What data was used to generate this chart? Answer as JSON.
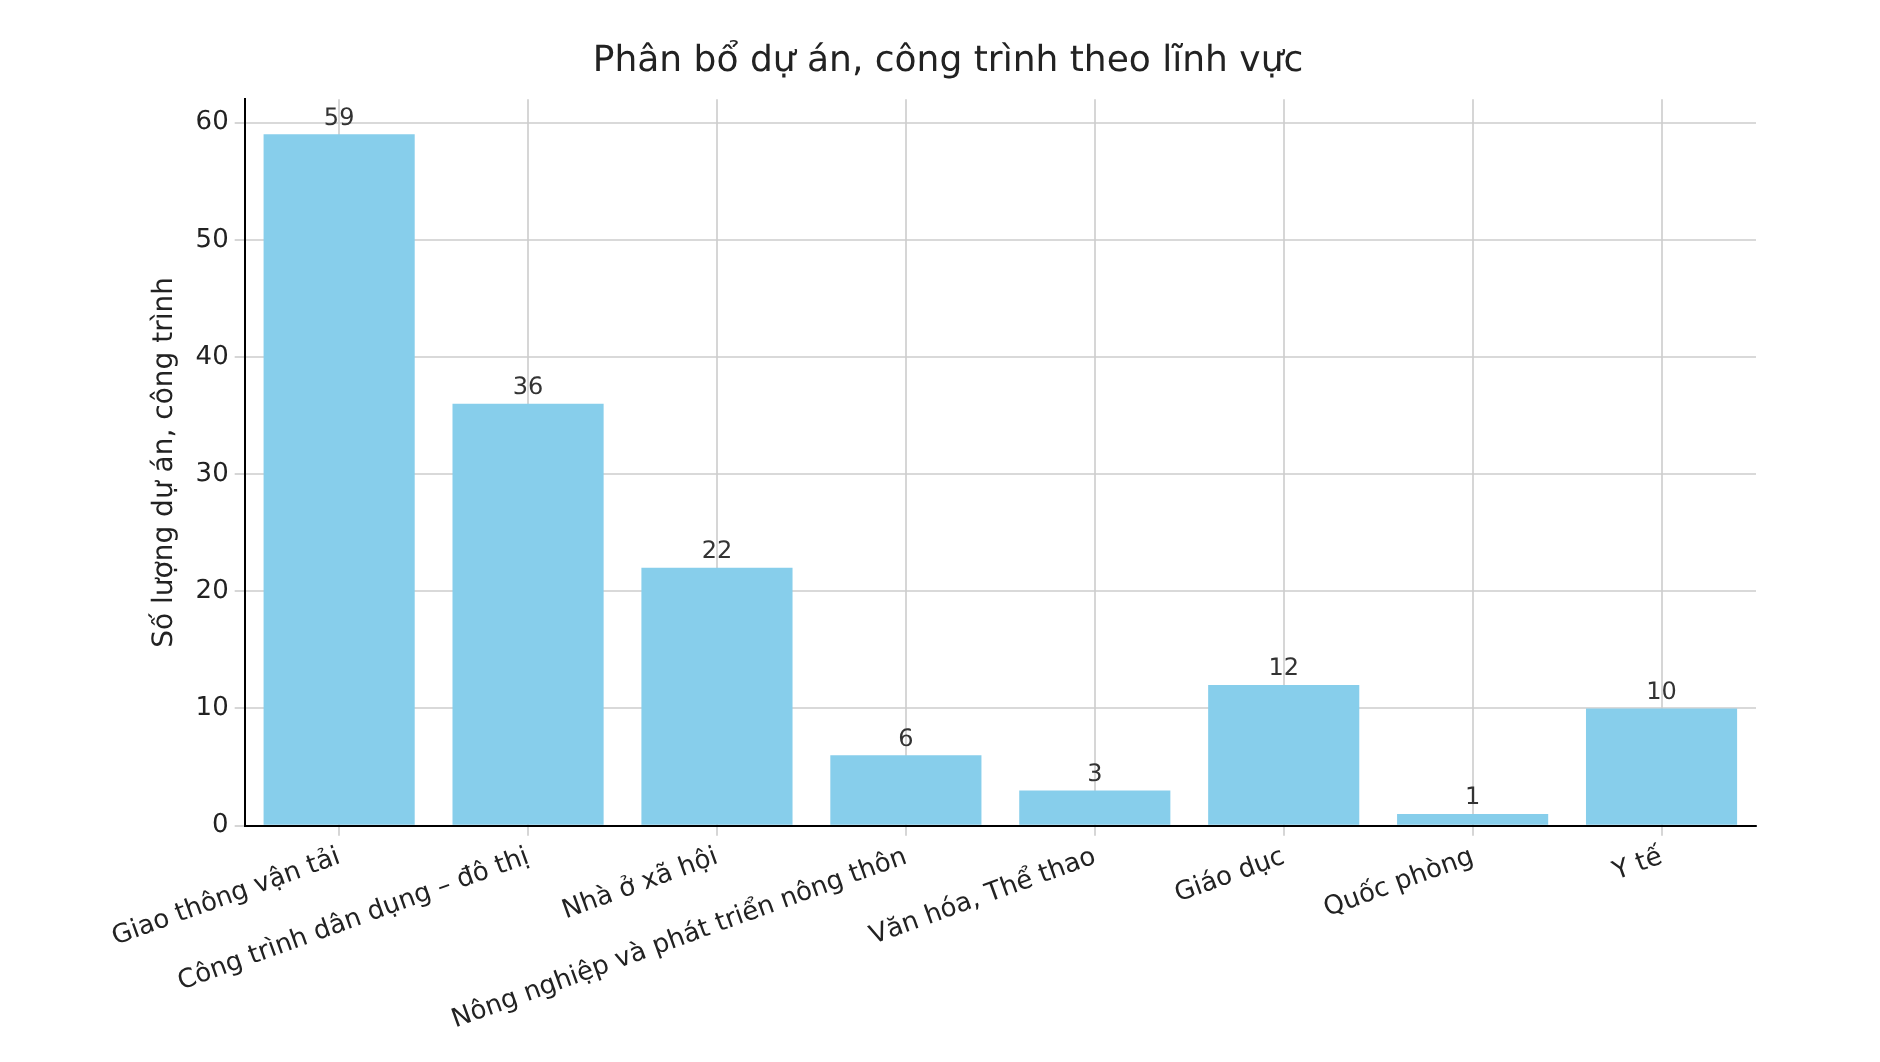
{
  "chart_data": {
    "type": "bar",
    "title": "Phân bổ dự án, công trình theo lĩnh vực",
    "ylabel": "Số lượng dự án, công trình",
    "categories": [
      "Giao thông vận tải",
      "Công trình dân dụng – đô thị",
      "Nhà ở xã hội",
      "Nông nghiệp và phát triển nông thôn",
      "Văn hóa, Thể thao",
      "Giáo dục",
      "Quốc phòng",
      "Y tế"
    ],
    "values": [
      59,
      36,
      22,
      6,
      3,
      12,
      1,
      10
    ],
    "color": "#87ceeb",
    "ylim": [
      0,
      62
    ],
    "yticks": [
      0,
      10,
      20,
      30,
      40,
      50,
      60
    ],
    "grid": true,
    "data_labels": true
  }
}
